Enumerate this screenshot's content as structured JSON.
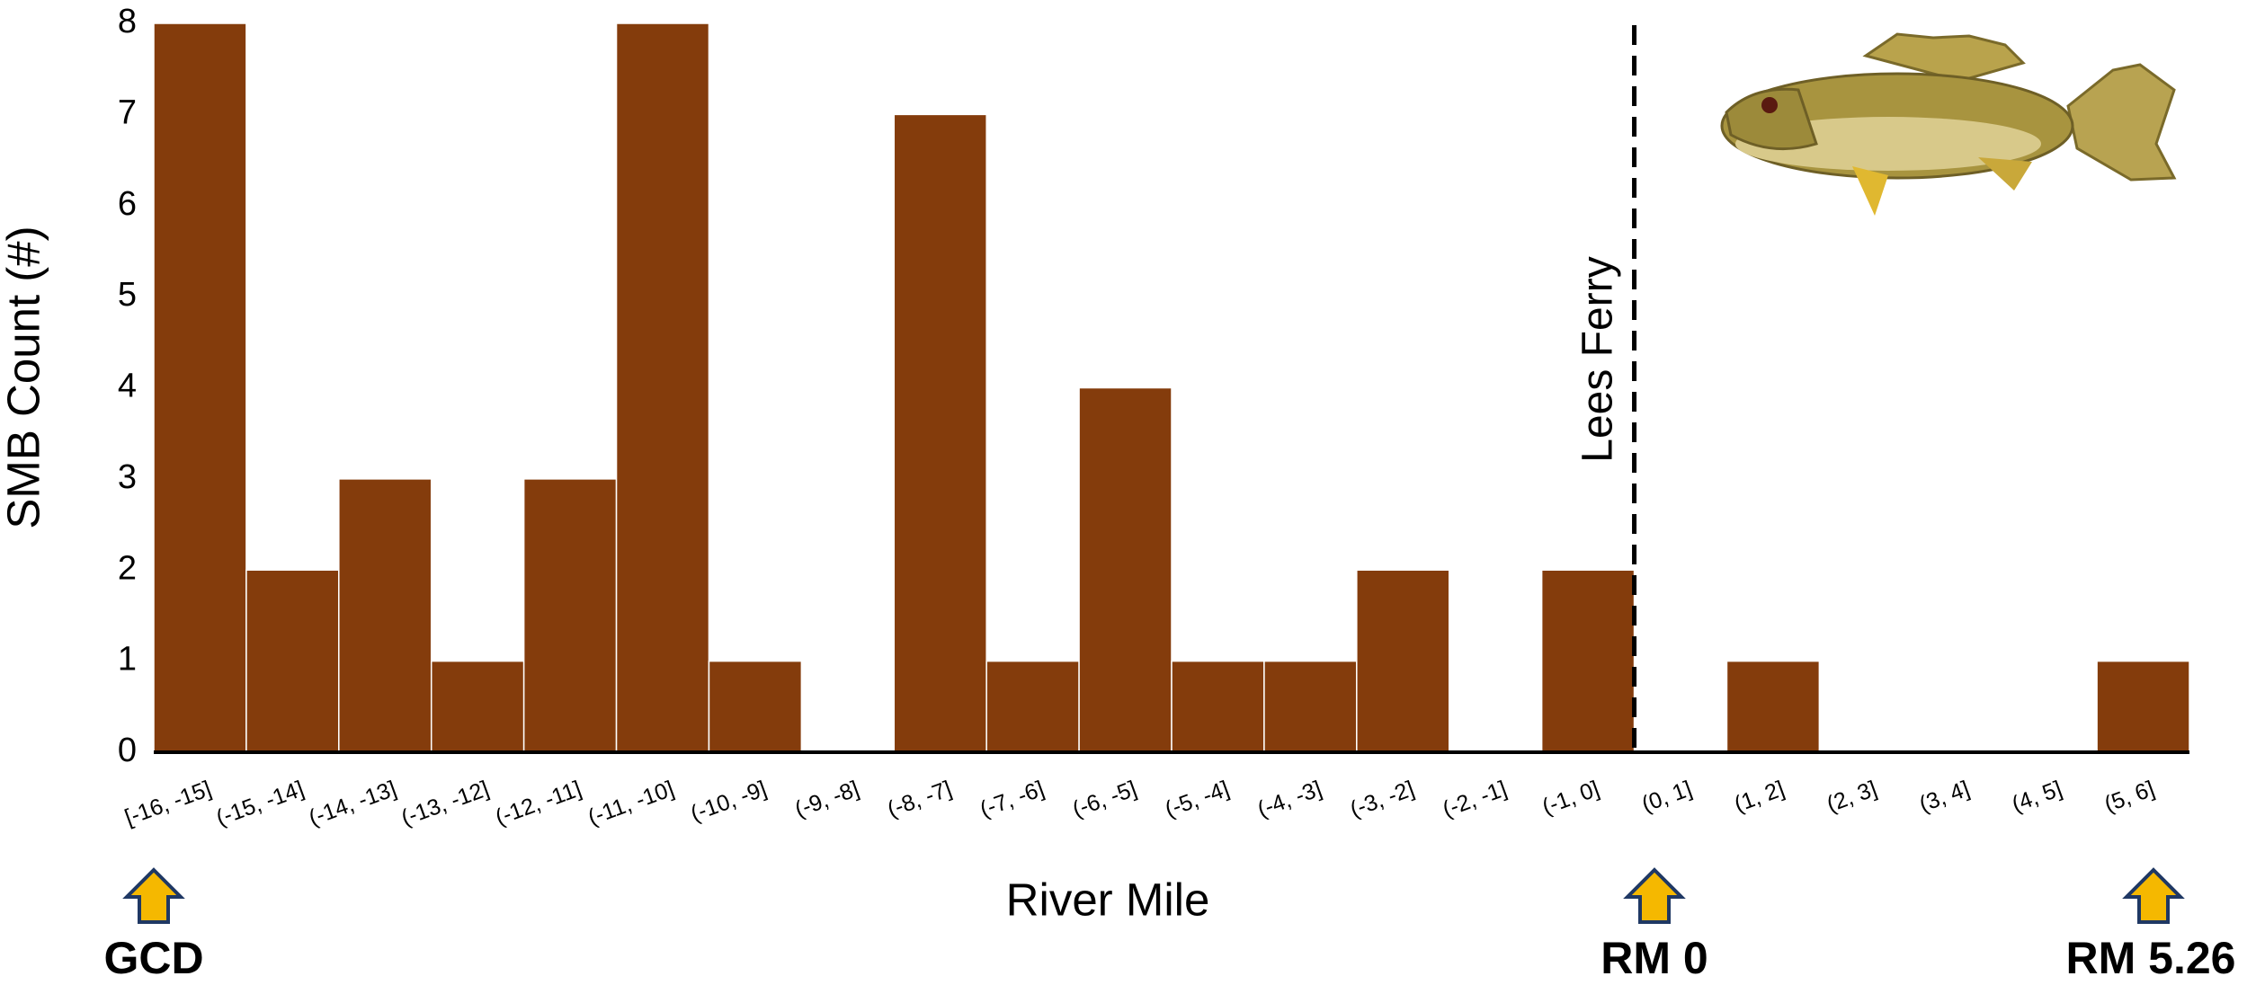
{
  "chart_data": {
    "type": "bar",
    "xlabel": "River Mile",
    "ylabel": "SMB Count (#)",
    "categories": [
      "[-16, -15]",
      "(-15, -14]",
      "(-14, -13]",
      "(-13, -12]",
      "(-12, -11]",
      "(-11, -10]",
      "(-10, -9]",
      "(-9, -8]",
      "(-8, -7]",
      "(-7, -6]",
      "(-6, -5]",
      "(-5, -4]",
      "(-4, -3]",
      "(-3, -2]",
      "(-2, -1]",
      "(-1, 0]",
      "(0, 1]",
      "(1, 2]",
      "(2, 3]",
      "(3, 4]",
      "(4, 5]",
      "(5, 6]"
    ],
    "values": [
      8,
      2,
      3,
      1,
      3,
      8,
      1,
      0,
      7,
      1,
      4,
      1,
      1,
      2,
      0,
      2,
      0,
      1,
      0,
      0,
      0,
      1
    ],
    "color": "#843c0c",
    "ylim": [
      0,
      8
    ],
    "yticks": [
      0,
      1,
      2,
      3,
      4,
      5,
      6,
      7,
      8
    ],
    "reference_line": {
      "label": "Lees Ferry"
    },
    "markers": [
      {
        "label": "GCD"
      },
      {
        "label": "RM 0"
      },
      {
        "label": "RM 5.26"
      }
    ]
  }
}
